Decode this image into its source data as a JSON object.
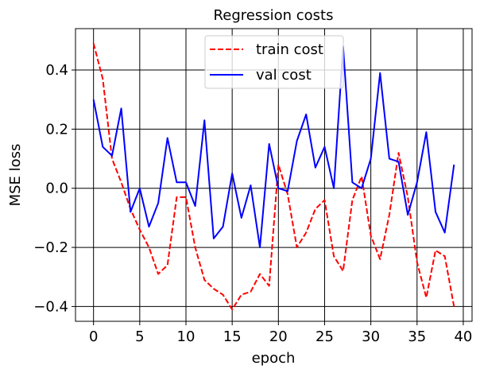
{
  "chart_data": {
    "type": "line",
    "title": "Regression costs",
    "xlabel": "epoch",
    "ylabel": "MSE loss",
    "xlim": [
      -1.95,
      40.95
    ],
    "ylim": [
      -0.45,
      0.54
    ],
    "xticks": [
      0,
      5,
      10,
      15,
      20,
      25,
      30,
      35,
      40
    ],
    "yticks": [
      -0.4,
      -0.2,
      0.0,
      0.2,
      0.4
    ],
    "xtick_labels": [
      "0",
      "5",
      "10",
      "15",
      "20",
      "25",
      "30",
      "35",
      "40"
    ],
    "ytick_labels": [
      "−0.4",
      "−0.2",
      "0.0",
      "0.2",
      "0.4"
    ],
    "grid": true,
    "legend": "upper center",
    "x": [
      0,
      1,
      2,
      3,
      4,
      5,
      6,
      7,
      8,
      9,
      10,
      11,
      12,
      13,
      14,
      15,
      16,
      17,
      18,
      19,
      20,
      21,
      22,
      23,
      24,
      25,
      26,
      27,
      28,
      29,
      30,
      31,
      32,
      33,
      34,
      35,
      36,
      37,
      38,
      39
    ],
    "series": [
      {
        "name": "train cost",
        "color": "#ff0000",
        "linestyle": "dashed",
        "values": [
          0.49,
          0.37,
          0.1,
          0.02,
          -0.07,
          -0.14,
          -0.2,
          -0.29,
          -0.26,
          -0.03,
          -0.03,
          -0.2,
          -0.31,
          -0.34,
          -0.36,
          -0.41,
          -0.36,
          -0.35,
          -0.29,
          -0.33,
          0.08,
          -0.02,
          -0.2,
          -0.15,
          -0.07,
          -0.04,
          -0.23,
          -0.28,
          -0.04,
          0.04,
          -0.16,
          -0.24,
          -0.09,
          0.12,
          -0.03,
          -0.25,
          -0.37,
          -0.21,
          -0.23,
          -0.4
        ]
      },
      {
        "name": "val cost",
        "color": "#0000ff",
        "linestyle": "solid",
        "values": [
          0.3,
          0.14,
          0.11,
          0.27,
          -0.08,
          0.0,
          -0.13,
          -0.05,
          0.17,
          0.02,
          0.02,
          -0.06,
          0.23,
          -0.17,
          -0.13,
          0.05,
          -0.1,
          0.01,
          -0.2,
          0.15,
          0.0,
          -0.01,
          0.16,
          0.25,
          0.07,
          0.14,
          0.0,
          0.48,
          0.02,
          0.0,
          0.1,
          0.39,
          0.1,
          0.09,
          -0.09,
          0.02,
          0.19,
          -0.08,
          -0.15,
          0.08
        ]
      }
    ]
  }
}
